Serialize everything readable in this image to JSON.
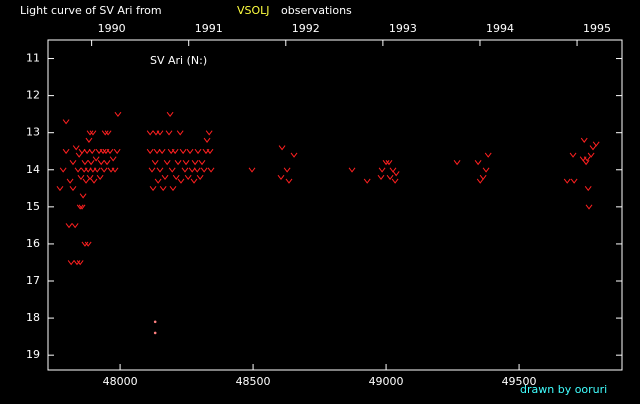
{
  "chart_data": {
    "type": "scatter",
    "title": "Light curve of SV Ari from",
    "title_highlight": "VSOLJ",
    "title_end": "observations",
    "annotation": "SV Ari (N:)",
    "credit": "drawn by ooruri",
    "xlim": [
      47729,
      49887
    ],
    "ylim": [
      19.4,
      10.5
    ],
    "xticks": [
      48000,
      48500,
      49000,
      49500
    ],
    "yticks": [
      11,
      12,
      13,
      14,
      15,
      16,
      17,
      18,
      19
    ],
    "x2ticks": [
      {
        "value": 47893,
        "label": "1990"
      },
      {
        "value": 48258,
        "label": "1991"
      },
      {
        "value": 48623,
        "label": "1992"
      },
      {
        "value": 48988,
        "label": "1993"
      },
      {
        "value": 49353,
        "label": "1994"
      },
      {
        "value": 49718,
        "label": "1995"
      }
    ],
    "series": [
      {
        "color": "#ff2020",
        "marker": "v",
        "x": [
          47774,
          47786,
          47797,
          47797,
          47808,
          47812,
          47816,
          47823,
          47823,
          47831,
          47835,
          47838,
          47842,
          47846,
          47850,
          47850,
          47853,
          47857,
          47857,
          47861,
          47865,
          47868,
          47868,
          47872,
          47876,
          47880,
          47880,
          47883,
          47887,
          47887,
          47891,
          47895,
          47898,
          47898,
          47902,
          47910,
          47914,
          47921,
          47925,
          47929,
          47936,
          47940,
          47944,
          47947,
          47951,
          47955,
          47962,
          47966,
          47974,
          47981,
          47989,
          47992,
          48113,
          48113,
          48120,
          48124,
          48132,
          48135,
          48139,
          48143,
          48150,
          48150,
          48158,
          48162,
          48169,
          48177,
          48184,
          48188,
          48192,
          48196,
          48199,
          48207,
          48211,
          48218,
          48226,
          48229,
          48237,
          48244,
          48248,
          48256,
          48263,
          48271,
          48278,
          48282,
          48290,
          48293,
          48301,
          48308,
          48316,
          48323,
          48327,
          48335,
          48338,
          48342,
          48496,
          48609,
          48605,
          48628,
          48635,
          48654,
          48872,
          48929,
          48981,
          48985,
          49000,
          49011,
          49015,
          49026,
          49034,
          49038,
          49267,
          49346,
          49354,
          49365,
          49376,
          49384,
          49681,
          49707,
          49703,
          49741,
          49745,
          49752,
          49756,
          49760,
          49763,
          49771,
          49778,
          49790
        ],
        "values": [
          14.5,
          14,
          12.7,
          13.5,
          15.5,
          14.3,
          16.5,
          13.8,
          14.5,
          15.5,
          13.4,
          16.5,
          14,
          13.6,
          16.5,
          15,
          14.2,
          13.5,
          15,
          14.7,
          14,
          13.8,
          16,
          14.3,
          13.5,
          14,
          16,
          13.2,
          14.2,
          13,
          13.8,
          13.5,
          14,
          13,
          14.3,
          13.7,
          14,
          13.5,
          14.2,
          13.8,
          13.5,
          14,
          13,
          13.5,
          13.8,
          13,
          13.5,
          14,
          13.7,
          14,
          13.5,
          12.5,
          13,
          13.5,
          14,
          14.5,
          13.8,
          13,
          13.5,
          14.3,
          13,
          14,
          13.5,
          14.5,
          14.2,
          13.8,
          13,
          12.5,
          13.5,
          14,
          14.5,
          13.5,
          14.2,
          13.8,
          13,
          14.3,
          13.5,
          14,
          13.8,
          14.2,
          13.5,
          14,
          14.3,
          13.8,
          14,
          13.5,
          14.2,
          13.8,
          14,
          13.5,
          13.2,
          13,
          13.5,
          14,
          14,
          13.4,
          14.2,
          14,
          14.3,
          13.6,
          14,
          14.3,
          14.2,
          14,
          13.8,
          13.8,
          14.2,
          14,
          14.3,
          14.1,
          13.8,
          13.8,
          14.3,
          14.2,
          14,
          13.6,
          14.3,
          14.3,
          13.6,
          13.7,
          13.2,
          13.8,
          13.7,
          14.5,
          15,
          13.6,
          13.4,
          13.3
        ]
      },
      {
        "color": "#ff8080",
        "marker": "dot",
        "x": [
          48132,
          48132
        ],
        "values": [
          18.1,
          18.4
        ]
      }
    ]
  }
}
